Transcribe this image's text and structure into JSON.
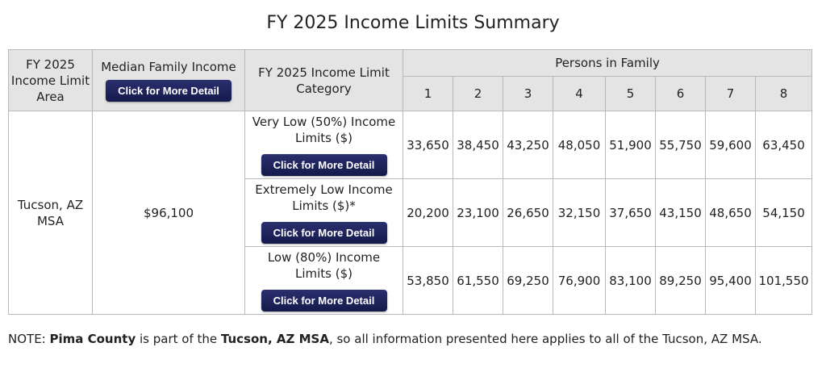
{
  "page": {
    "title": "FY 2025 Income Limits Summary"
  },
  "table": {
    "headers": {
      "area": "FY 2025 Income Limit Area",
      "median": "Median Family Income",
      "median_button": "Click for More Detail",
      "category": "FY 2025 Income Limit Category",
      "persons": "Persons in Family",
      "person_counts": [
        "1",
        "2",
        "3",
        "4",
        "5",
        "6",
        "7",
        "8"
      ]
    },
    "area": "Tucson, AZ MSA",
    "median_income": "$96,100",
    "rows": [
      {
        "category": "Very Low (50%) Income Limits ($)",
        "button": "Click for More Detail",
        "values": [
          "33,650",
          "38,450",
          "43,250",
          "48,050",
          "51,900",
          "55,750",
          "59,600",
          "63,450"
        ]
      },
      {
        "category": "Extremely Low Income Limits ($)*",
        "button": "Click for More Detail",
        "values": [
          "20,200",
          "23,100",
          "26,650",
          "32,150",
          "37,650",
          "43,150",
          "48,650",
          "54,150"
        ]
      },
      {
        "category": "Low (80%) Income Limits ($)",
        "button": "Click for More Detail",
        "values": [
          "53,850",
          "61,550",
          "69,250",
          "76,900",
          "83,100",
          "89,250",
          "95,400",
          "101,550"
        ]
      }
    ]
  },
  "note": {
    "prefix": "NOTE: ",
    "county": "Pima County",
    "middle": " is part of the ",
    "msa": "Tucson, AZ MSA",
    "suffix": ", so all information presented here applies to all of the Tucson, AZ MSA."
  }
}
